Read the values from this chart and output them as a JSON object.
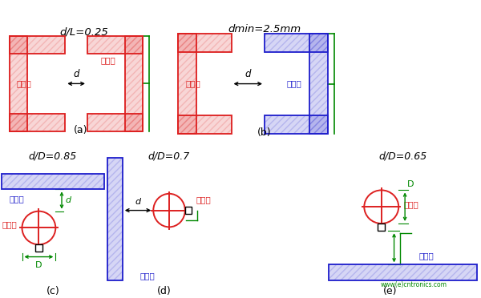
{
  "bg": "#ffffff",
  "red": "#dd2020",
  "blue": "#2020cc",
  "green": "#008800",
  "black": "#000000",
  "title_a": "d/L=0.25",
  "title_b": "dmin=2.5mm",
  "title_c": "d/D=0.85",
  "title_d": "d/D=0.7",
  "title_e": "d/D=0.65",
  "hot": "热表面",
  "cold": "冷表面",
  "website": "www(e)cntronics.com"
}
